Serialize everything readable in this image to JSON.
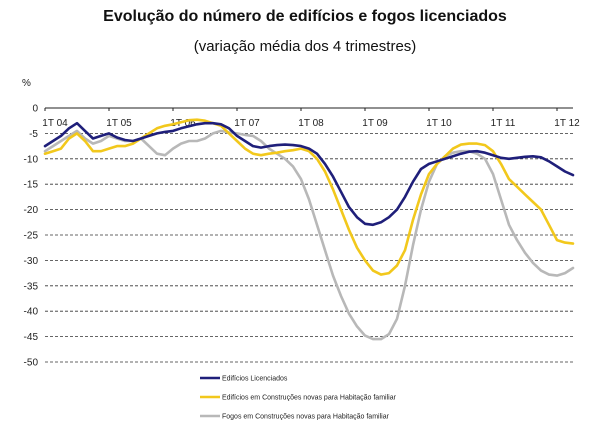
{
  "chart_data": {
    "type": "line",
    "title": "Evolução do número de edifícios e fogos licenciados",
    "subtitle": "(variação média dos 4 trimestres)",
    "ylabel": "%",
    "ylim": [
      -50,
      0
    ],
    "yticks": [
      0,
      -5,
      -10,
      -15,
      -20,
      -25,
      -30,
      -35,
      -40,
      -45,
      -50
    ],
    "x_quarter_range": [
      "1T 04",
      "2T 12"
    ],
    "xticks": [
      {
        "label": "1T 04",
        "q": 0
      },
      {
        "label": "1T 05",
        "q": 4
      },
      {
        "label": "1T 06",
        "q": 8
      },
      {
        "label": "1T 07",
        "q": 12
      },
      {
        "label": "1T 08",
        "q": 16
      },
      {
        "label": "1T 09",
        "q": 20
      },
      {
        "label": "1T 10",
        "q": 24
      },
      {
        "label": "1T 11",
        "q": 28
      },
      {
        "label": "1T 12",
        "q": 32
      }
    ],
    "grid": "horizontal-dashed",
    "legend_position": "bottom-left",
    "series": [
      {
        "name": "Edifícios Licenciados",
        "color": "#1f1f7a",
        "points": [
          [
            0,
            -7.5
          ],
          [
            0.5,
            -6.5
          ],
          [
            1,
            -5.5
          ],
          [
            1.5,
            -4
          ],
          [
            2,
            -3
          ],
          [
            2.5,
            -4.5
          ],
          [
            3,
            -6
          ],
          [
            3.5,
            -5.5
          ],
          [
            4,
            -5
          ],
          [
            4.5,
            -5.8
          ],
          [
            5,
            -6.3
          ],
          [
            5.5,
            -6.5
          ],
          [
            6,
            -6
          ],
          [
            6.5,
            -5.5
          ],
          [
            7,
            -5
          ],
          [
            7.5,
            -4.7
          ],
          [
            8,
            -4.5
          ],
          [
            8.5,
            -4
          ],
          [
            9,
            -3.6
          ],
          [
            9.5,
            -3.2
          ],
          [
            10,
            -3
          ],
          [
            10.5,
            -3
          ],
          [
            11,
            -3.2
          ],
          [
            11.5,
            -4
          ],
          [
            12,
            -5.5
          ],
          [
            12.5,
            -6.5
          ],
          [
            13,
            -7.5
          ],
          [
            13.5,
            -7.8
          ],
          [
            14,
            -7.5
          ],
          [
            14.5,
            -7.3
          ],
          [
            15,
            -7.2
          ],
          [
            15.5,
            -7.3
          ],
          [
            16,
            -7.5
          ],
          [
            16.5,
            -8
          ],
          [
            17,
            -9
          ],
          [
            17.5,
            -11
          ],
          [
            18,
            -13.5
          ],
          [
            18.5,
            -16.5
          ],
          [
            19,
            -19.5
          ],
          [
            19.5,
            -21.5
          ],
          [
            20,
            -22.8
          ],
          [
            20.5,
            -23
          ],
          [
            21,
            -22.5
          ],
          [
            21.5,
            -21.5
          ],
          [
            22,
            -20
          ],
          [
            22.5,
            -17.5
          ],
          [
            23,
            -14.5
          ],
          [
            23.5,
            -12
          ],
          [
            24,
            -11
          ],
          [
            24.5,
            -10.5
          ],
          [
            25,
            -10
          ],
          [
            25.5,
            -9.5
          ],
          [
            26,
            -9
          ],
          [
            26.5,
            -8.6
          ],
          [
            27,
            -8.5
          ],
          [
            27.5,
            -8.8
          ],
          [
            28,
            -9.3
          ],
          [
            28.5,
            -9.8
          ],
          [
            29,
            -10
          ],
          [
            29.5,
            -9.8
          ],
          [
            30,
            -9.6
          ],
          [
            30.5,
            -9.5
          ],
          [
            31,
            -9.7
          ],
          [
            31.5,
            -10.5
          ],
          [
            32,
            -11.5
          ],
          [
            32.5,
            -12.5
          ],
          [
            33,
            -13.2
          ]
        ]
      },
      {
        "name": "Edifícios em Construções novas para Habitação familiar",
        "color": "#f2c81c",
        "points": [
          [
            0,
            -9
          ],
          [
            0.5,
            -8.5
          ],
          [
            1,
            -8
          ],
          [
            1.5,
            -6
          ],
          [
            2,
            -5
          ],
          [
            2.5,
            -6.5
          ],
          [
            3,
            -8.5
          ],
          [
            3.5,
            -8.5
          ],
          [
            4,
            -8
          ],
          [
            4.5,
            -7.5
          ],
          [
            5,
            -7.5
          ],
          [
            5.5,
            -7
          ],
          [
            6,
            -6
          ],
          [
            6.5,
            -5
          ],
          [
            7,
            -4
          ],
          [
            7.5,
            -3.5
          ],
          [
            8,
            -3.2
          ],
          [
            8.5,
            -2.8
          ],
          [
            9,
            -2.4
          ],
          [
            9.5,
            -2.3
          ],
          [
            10,
            -2.5
          ],
          [
            10.5,
            -3
          ],
          [
            11,
            -3.5
          ],
          [
            11.5,
            -5
          ],
          [
            12,
            -6.5
          ],
          [
            12.5,
            -8
          ],
          [
            13,
            -9
          ],
          [
            13.5,
            -9.3
          ],
          [
            14,
            -9
          ],
          [
            14.5,
            -8.8
          ],
          [
            15,
            -8.5
          ],
          [
            15.5,
            -8.3
          ],
          [
            16,
            -8
          ],
          [
            16.5,
            -8.5
          ],
          [
            17,
            -10
          ],
          [
            17.5,
            -12.5
          ],
          [
            18,
            -16
          ],
          [
            18.5,
            -20
          ],
          [
            19,
            -24
          ],
          [
            19.5,
            -27.5
          ],
          [
            20,
            -30
          ],
          [
            20.5,
            -32
          ],
          [
            21,
            -32.8
          ],
          [
            21.5,
            -32.5
          ],
          [
            22,
            -31
          ],
          [
            22.5,
            -28
          ],
          [
            23,
            -22
          ],
          [
            23.5,
            -17
          ],
          [
            24,
            -13
          ],
          [
            24.5,
            -11
          ],
          [
            25,
            -9.5
          ],
          [
            25.5,
            -8
          ],
          [
            26,
            -7.2
          ],
          [
            26.5,
            -7
          ],
          [
            27,
            -7
          ],
          [
            27.5,
            -7.3
          ],
          [
            28,
            -8.5
          ],
          [
            28.5,
            -11
          ],
          [
            29,
            -14
          ],
          [
            29.5,
            -15.5
          ],
          [
            30,
            -17
          ],
          [
            30.5,
            -18.5
          ],
          [
            31,
            -20
          ],
          [
            31.5,
            -23
          ],
          [
            32,
            -26
          ],
          [
            32.5,
            -26.5
          ],
          [
            33,
            -26.7
          ]
        ]
      },
      {
        "name": "Fogos em Construções novas para Habitação familiar",
        "color": "#b8b8b8",
        "points": [
          [
            0,
            -8.5
          ],
          [
            0.5,
            -7.5
          ],
          [
            1,
            -6.5
          ],
          [
            1.5,
            -5.5
          ],
          [
            2,
            -4.5
          ],
          [
            2.5,
            -6
          ],
          [
            3,
            -7
          ],
          [
            3.5,
            -6.5
          ],
          [
            4,
            -5.5
          ],
          [
            4.5,
            -6
          ],
          [
            5,
            -6.5
          ],
          [
            5.5,
            -6.5
          ],
          [
            6,
            -6
          ],
          [
            6.5,
            -7.5
          ],
          [
            7,
            -9
          ],
          [
            7.5,
            -9.3
          ],
          [
            8,
            -8
          ],
          [
            8.5,
            -7
          ],
          [
            9,
            -6.5
          ],
          [
            9.5,
            -6.5
          ],
          [
            10,
            -6
          ],
          [
            10.5,
            -5
          ],
          [
            11,
            -4.5
          ],
          [
            11.5,
            -4.8
          ],
          [
            12,
            -5
          ],
          [
            12.5,
            -5.3
          ],
          [
            13,
            -5.5
          ],
          [
            13.5,
            -6.5
          ],
          [
            14,
            -8
          ],
          [
            14.5,
            -9
          ],
          [
            15,
            -10
          ],
          [
            15.5,
            -11.5
          ],
          [
            16,
            -14
          ],
          [
            16.5,
            -18
          ],
          [
            17,
            -23
          ],
          [
            17.5,
            -28
          ],
          [
            18,
            -33
          ],
          [
            18.5,
            -37
          ],
          [
            19,
            -40.5
          ],
          [
            19.5,
            -43
          ],
          [
            20,
            -44.8
          ],
          [
            20.5,
            -45.5
          ],
          [
            21,
            -45.5
          ],
          [
            21.5,
            -44.5
          ],
          [
            22,
            -41.5
          ],
          [
            22.5,
            -35
          ],
          [
            23,
            -27
          ],
          [
            23.5,
            -20
          ],
          [
            24,
            -14.5
          ],
          [
            24.5,
            -11
          ],
          [
            25,
            -9.5
          ],
          [
            25.5,
            -8.8
          ],
          [
            26,
            -8.5
          ],
          [
            26.5,
            -8.5
          ],
          [
            27,
            -9
          ],
          [
            27.5,
            -10
          ],
          [
            28,
            -13
          ],
          [
            28.5,
            -18
          ],
          [
            29,
            -23
          ],
          [
            29.5,
            -26
          ],
          [
            30,
            -28.5
          ],
          [
            30.5,
            -30.5
          ],
          [
            31,
            -32
          ],
          [
            31.5,
            -32.8
          ],
          [
            32,
            -33
          ],
          [
            32.5,
            -32.5
          ],
          [
            33,
            -31.5
          ]
        ]
      }
    ]
  }
}
